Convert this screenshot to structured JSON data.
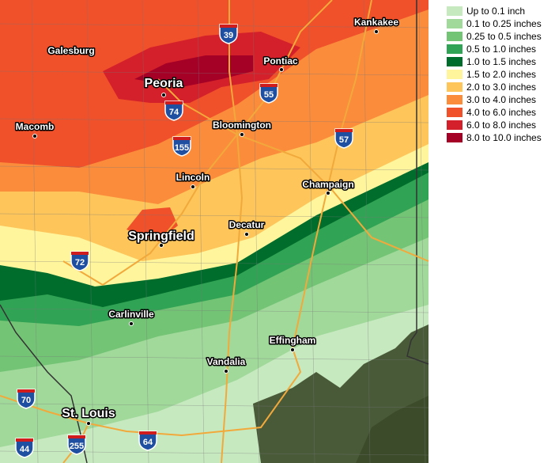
{
  "legend": {
    "items": [
      {
        "label": "Up to 0.1 inch",
        "color": "#c7e9c0"
      },
      {
        "label": "0.1 to 0.25 inches",
        "color": "#a1d99b"
      },
      {
        "label": "0.25 to 0.5 inches",
        "color": "#74c476"
      },
      {
        "label": "0.5 to 1.0 inches",
        "color": "#31a354"
      },
      {
        "label": "1.0 to 1.5 inches",
        "color": "#006d2c"
      },
      {
        "label": "1.5 to 2.0 inches",
        "color": "#fff59d"
      },
      {
        "label": "2.0 to 3.0 inches",
        "color": "#fdc55a"
      },
      {
        "label": "3.0 to 4.0 inches",
        "color": "#fb8c3c"
      },
      {
        "label": "4.0 to 6.0 inches",
        "color": "#f0502a"
      },
      {
        "label": "6.0 to 8.0 inches",
        "color": "#d4202a"
      },
      {
        "label": "8.0 to 10.0 inches",
        "color": "#a50026"
      }
    ]
  },
  "cities": [
    {
      "name": "Galesburg"
    },
    {
      "name": "Kankakee"
    },
    {
      "name": "Pontiac"
    },
    {
      "name": "Peoria"
    },
    {
      "name": "Macomb"
    },
    {
      "name": "Bloomington"
    },
    {
      "name": "Lincoln"
    },
    {
      "name": "Champaign"
    },
    {
      "name": "Springfield"
    },
    {
      "name": "Decatur"
    },
    {
      "name": "Carlinville"
    },
    {
      "name": "Effingham"
    },
    {
      "name": "Vandalia"
    },
    {
      "name": "St. Louis"
    }
  ],
  "interstates": [
    "39",
    "55",
    "74",
    "155",
    "57",
    "72",
    "70",
    "255",
    "44",
    "64"
  ]
}
